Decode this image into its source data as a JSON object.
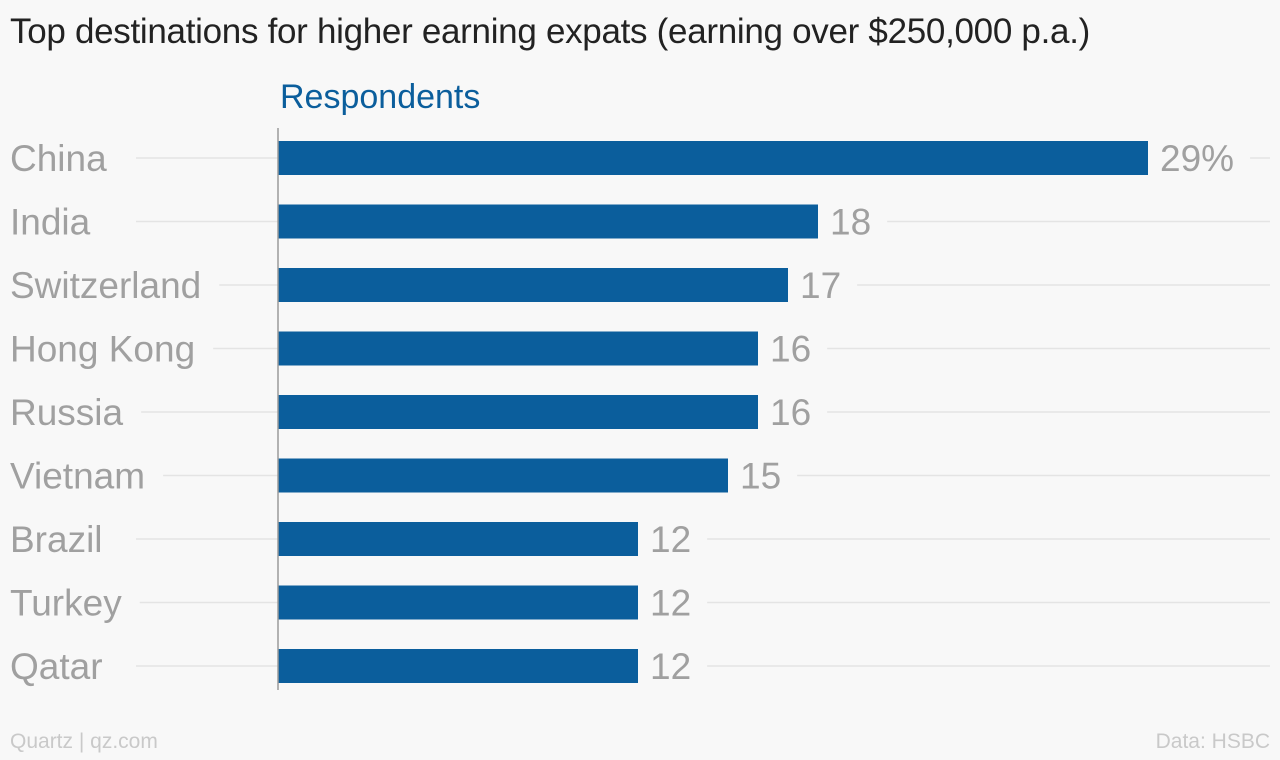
{
  "chart_data": {
    "type": "bar",
    "orientation": "horizontal",
    "title": "Top destinations for higher earning expats (earning over $250,000 p.a.)",
    "series_label": "Respondents",
    "categories": [
      "China",
      "India",
      "Switzerland",
      "Hong Kong",
      "Russia",
      "Vietnam",
      "Brazil",
      "Turkey",
      "Qatar"
    ],
    "values": [
      29,
      18,
      17,
      16,
      16,
      15,
      12,
      12,
      12
    ],
    "value_labels": [
      "29%",
      "18",
      "17",
      "16",
      "16",
      "15",
      "12",
      "12",
      "12"
    ],
    "unit": "%",
    "xlim": [
      0,
      30
    ],
    "grid": true,
    "colors": {
      "bar": "#0b5e9c",
      "category_text": "#a0a0a0",
      "value_text": "#a0a0a0",
      "gridline": "#e4e4e4",
      "axis": "#9a9a9a"
    }
  },
  "footer": {
    "source_left": "Quartz | qz.com",
    "source_right": "Data: HSBC"
  }
}
